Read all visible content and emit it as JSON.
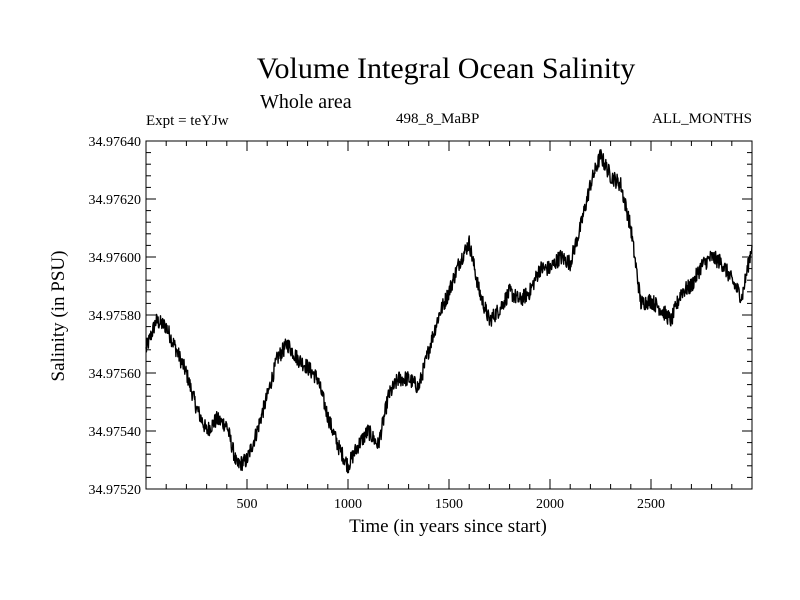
{
  "chart_data": {
    "type": "line",
    "title": "Volume Integral Ocean Salinity",
    "subtitle": "Whole area",
    "annotations": {
      "left": "Expt = teYJw",
      "center": "498_8_MaBP",
      "right": "ALL_MONTHS"
    },
    "xlabel": "Time (in years since start)",
    "ylabel": "Salinity (in PSU)",
    "xlim": [
      0,
      3000
    ],
    "ylim": [
      34.9752,
      34.9764
    ],
    "xticks": [
      500,
      1000,
      1500,
      2000,
      2500
    ],
    "xtick_labels": [
      "500",
      "1000",
      "1500",
      "2000",
      "2500"
    ],
    "yticks": [
      34.9752,
      34.9754,
      34.9756,
      34.9758,
      34.976,
      34.9762,
      34.9764
    ],
    "ytick_labels": [
      "34.97520",
      "34.97540",
      "34.97560",
      "34.97580",
      "34.97600",
      "34.97620",
      "34.97640"
    ],
    "grid": false,
    "series": [
      {
        "name": "salinity",
        "x": [
          0,
          50,
          100,
          150,
          200,
          250,
          300,
          350,
          400,
          450,
          500,
          550,
          600,
          650,
          700,
          750,
          800,
          850,
          900,
          950,
          1000,
          1050,
          1100,
          1150,
          1200,
          1250,
          1300,
          1350,
          1400,
          1450,
          1500,
          1550,
          1600,
          1650,
          1700,
          1750,
          1800,
          1850,
          1900,
          1950,
          2000,
          2050,
          2100,
          2150,
          2200,
          2250,
          2300,
          2350,
          2400,
          2450,
          2500,
          2550,
          2600,
          2650,
          2700,
          2750,
          2800,
          2850,
          2900,
          2950,
          3000
        ],
        "y": [
          34.97568,
          34.97578,
          34.97576,
          34.97568,
          34.9756,
          34.97548,
          34.9754,
          34.97544,
          34.97542,
          34.97528,
          34.9753,
          34.9754,
          34.97552,
          34.97565,
          34.9757,
          34.97565,
          34.97562,
          34.97558,
          34.97545,
          34.97535,
          34.97528,
          34.97535,
          34.9754,
          34.97535,
          34.97552,
          34.97558,
          34.97558,
          34.97555,
          34.97568,
          34.9758,
          34.97588,
          34.97598,
          34.97605,
          34.97588,
          34.97578,
          34.97582,
          34.97588,
          34.97585,
          34.97588,
          34.97596,
          34.97596,
          34.976,
          34.97598,
          34.9761,
          34.97625,
          34.97635,
          34.97628,
          34.97625,
          34.9761,
          34.97584,
          34.97585,
          34.97582,
          34.97578,
          34.97588,
          34.9759,
          34.97597,
          34.976,
          34.97598,
          34.97592,
          34.97586,
          34.97604
        ]
      }
    ]
  }
}
